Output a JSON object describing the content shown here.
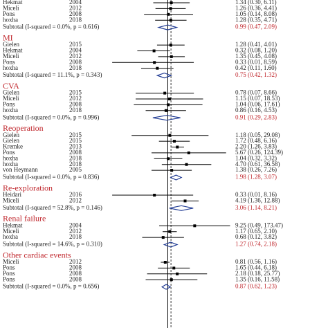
{
  "chart_data": {
    "type": "forest",
    "log_scale": true,
    "xlim": [
      0.005,
      200
    ],
    "null_value": 1,
    "overall_value": 1.3,
    "title_color": "#c0272d",
    "mark_color": "#000000",
    "diamond_color": "#1f3a93",
    "groups": [
      {
        "rows": [
          {
            "study": "Hekmat",
            "year": "2004",
            "values": [
              1.34,
              0.3,
              6.11
            ],
            "value_label": "1.34 (0.30, 6.11)"
          },
          {
            "study": "Miceli",
            "year": "2012",
            "values": [
              1.26,
              0.36,
              4.41
            ],
            "value_label": "1.26 (0.36, 4.41)"
          },
          {
            "study": "Pons",
            "year": "2008",
            "values": [
              1.05,
              0.14,
              8.08
            ],
            "value_label": "1.05 (0.14, 8.08)"
          },
          {
            "study": "hoxha",
            "year": "2018",
            "values": [
              1.28,
              0.35,
              4.71
            ],
            "value_label": "1.28 (0.35, 4.71)"
          }
        ],
        "subtotal": {
          "label": "Subtotal  (I-squared = 0.0%, p = 0.616)",
          "values": [
            0.99,
            0.47,
            2.09
          ],
          "value_label": "0.99 (0.47, 2.09)"
        }
      },
      {
        "title": "MI",
        "rows": [
          {
            "study": "Gielen",
            "year": "2015",
            "values": [
              1.28,
              0.41,
              4.01
            ],
            "value_label": "1.28 (0.41, 4.01)"
          },
          {
            "study": "Hekmat",
            "year": "2004",
            "values": [
              0.32,
              0.08,
              1.2
            ],
            "value_label": "0.32 (0.08, 1.20)"
          },
          {
            "study": "Miceli",
            "year": "2012",
            "values": [
              1.35,
              0.45,
              4.08
            ],
            "value_label": "1.35 (0.45, 4.08)"
          },
          {
            "study": "Pons",
            "year": "2008",
            "values": [
              0.33,
              0.01,
              8.59
            ],
            "value_label": "0.33 (0.01, 8.59)"
          },
          {
            "study": "hoxha",
            "year": "2018",
            "values": [
              0.42,
              0.11,
              1.6
            ],
            "value_label": "0.42 (0.11, 1.60)"
          }
        ],
        "subtotal": {
          "label": "Subtotal  (I-squared = 11.1%, p = 0.343)",
          "values": [
            0.75,
            0.42,
            1.32
          ],
          "value_label": "0.75 (0.42, 1.32)"
        }
      },
      {
        "title": "CVA",
        "rows": [
          {
            "study": "Gielen",
            "year": "2015",
            "values": [
              0.78,
              0.07,
              8.66
            ],
            "value_label": "0.78 (0.07, 8.66)"
          },
          {
            "study": "Miceli",
            "year": "2012",
            "values": [
              1.15,
              0.07,
              18.53
            ],
            "value_label": "1.15 (0.07, 18.53)"
          },
          {
            "study": "Pons",
            "year": "2008",
            "values": [
              1.04,
              0.06,
              17.61
            ],
            "value_label": "1.04 (0.06, 17.61)"
          },
          {
            "study": "hoxha",
            "year": "2018",
            "values": [
              0.86,
              0.16,
              4.53
            ],
            "value_label": "0.86 (0.16, 4.53)"
          }
        ],
        "subtotal": {
          "label": "Subtotal  (I-squared = 0.0%, p = 0.996)",
          "values": [
            0.91,
            0.29,
            2.83
          ],
          "value_label": "0.91 (0.29, 2.83)"
        }
      },
      {
        "title": "Reoperation",
        "rows": [
          {
            "study": "Gielen",
            "year": "2015",
            "values": [
              1.18,
              0.05,
              29.08
            ],
            "value_label": "1.18 (0.05, 29.08)"
          },
          {
            "study": "Gielen",
            "year": "2015",
            "values": [
              1.72,
              0.48,
              6.16
            ],
            "value_label": "1.72 (0.48, 6.16)"
          },
          {
            "study": "Kremke",
            "year": "2013",
            "values": [
              2.2,
              1.26,
              3.83
            ],
            "value_label": "2.20 (1.26, 3.83)"
          },
          {
            "study": "Pons",
            "year": "2008",
            "values": [
              5.67,
              0.26,
              124.39
            ],
            "value_label": "5.67 (0.26, 124.39)"
          },
          {
            "study": "hoxha",
            "year": "2018",
            "values": [
              1.04,
              0.32,
              3.32
            ],
            "value_label": "1.04 (0.32, 3.32)"
          },
          {
            "study": "hoxha",
            "year": "2018",
            "values": [
              4.7,
              0.61,
              36.58
            ],
            "value_label": "4.70 (0.61, 36.58)"
          },
          {
            "study": "von Heymann",
            "year": "2005",
            "values": [
              1.38,
              0.26,
              7.26
            ],
            "value_label": "1.38 (0.26, 7.26)"
          }
        ],
        "subtotal": {
          "label": "Subtotal  (I-squared = 0.0%, p = 0.836)",
          "values": [
            1.98,
            1.28,
            3.07
          ],
          "value_label": "1.98 (1.28, 3.07)"
        }
      },
      {
        "title": "Re-exploration",
        "rows": [
          {
            "study": "Heidari",
            "year": "2016",
            "values": [
              0.33,
              0.01,
              8.16
            ],
            "value_label": "0.33 (0.01, 8.16)"
          },
          {
            "study": "Miceli",
            "year": "2012",
            "values": [
              4.19,
              1.36,
              12.88
            ],
            "value_label": "4.19 (1.36, 12.88)"
          }
        ],
        "subtotal": {
          "label": "Subtotal  (I-squared = 52.8%, p = 0.146)",
          "values": [
            3.06,
            1.14,
            8.21
          ],
          "value_label": "3.06 (1.14, 8.21)"
        }
      },
      {
        "title": "Renal failure",
        "rows": [
          {
            "study": "Hekmat",
            "year": "2004",
            "values": [
              9.25,
              0.49,
              173.47
            ],
            "value_label": "9.25 (0.49, 173.47)"
          },
          {
            "study": "Miceli",
            "year": "2012",
            "values": [
              1.17,
              0.65,
              2.1
            ],
            "value_label": "1.17 (0.65, 2.10)"
          },
          {
            "study": "hoxha",
            "year": "2018",
            "values": [
              0.68,
              0.12,
              3.82
            ],
            "value_label": "0.68 (0.12, 3.82)"
          }
        ],
        "subtotal": {
          "label": "Subtotal  (I-squared = 14.6%, p = 0.310)",
          "values": [
            1.27,
            0.74,
            2.18
          ],
          "value_label": "1.27 (0.74, 2.18)"
        }
      },
      {
        "title": "Other cardiac events",
        "rows": [
          {
            "study": "Miceli",
            "year": "2012",
            "values": [
              0.81,
              0.56,
              1.16
            ],
            "value_label": "0.81 (0.56, 1.16)"
          },
          {
            "study": "Pons",
            "year": "2008",
            "values": [
              1.65,
              0.44,
              6.18
            ],
            "value_label": "1.65 (0.44, 6.18)"
          },
          {
            "study": "Pons",
            "year": "2008",
            "values": [
              2.18,
              0.18,
              25.77
            ],
            "value_label": "2.18 (0.18, 25.77)"
          },
          {
            "study": "Pons",
            "year": "2008",
            "values": [
              1.35,
              0.16,
              11.58
            ],
            "value_label": "1.35 (0.16, 11.58)"
          }
        ],
        "subtotal": {
          "label": "Subtotal  (I-squared = 0.0%, p = 0.656)",
          "values": [
            0.87,
            0.62,
            1.23
          ],
          "value_label": "0.87 (0.62, 1.23)"
        }
      }
    ]
  }
}
